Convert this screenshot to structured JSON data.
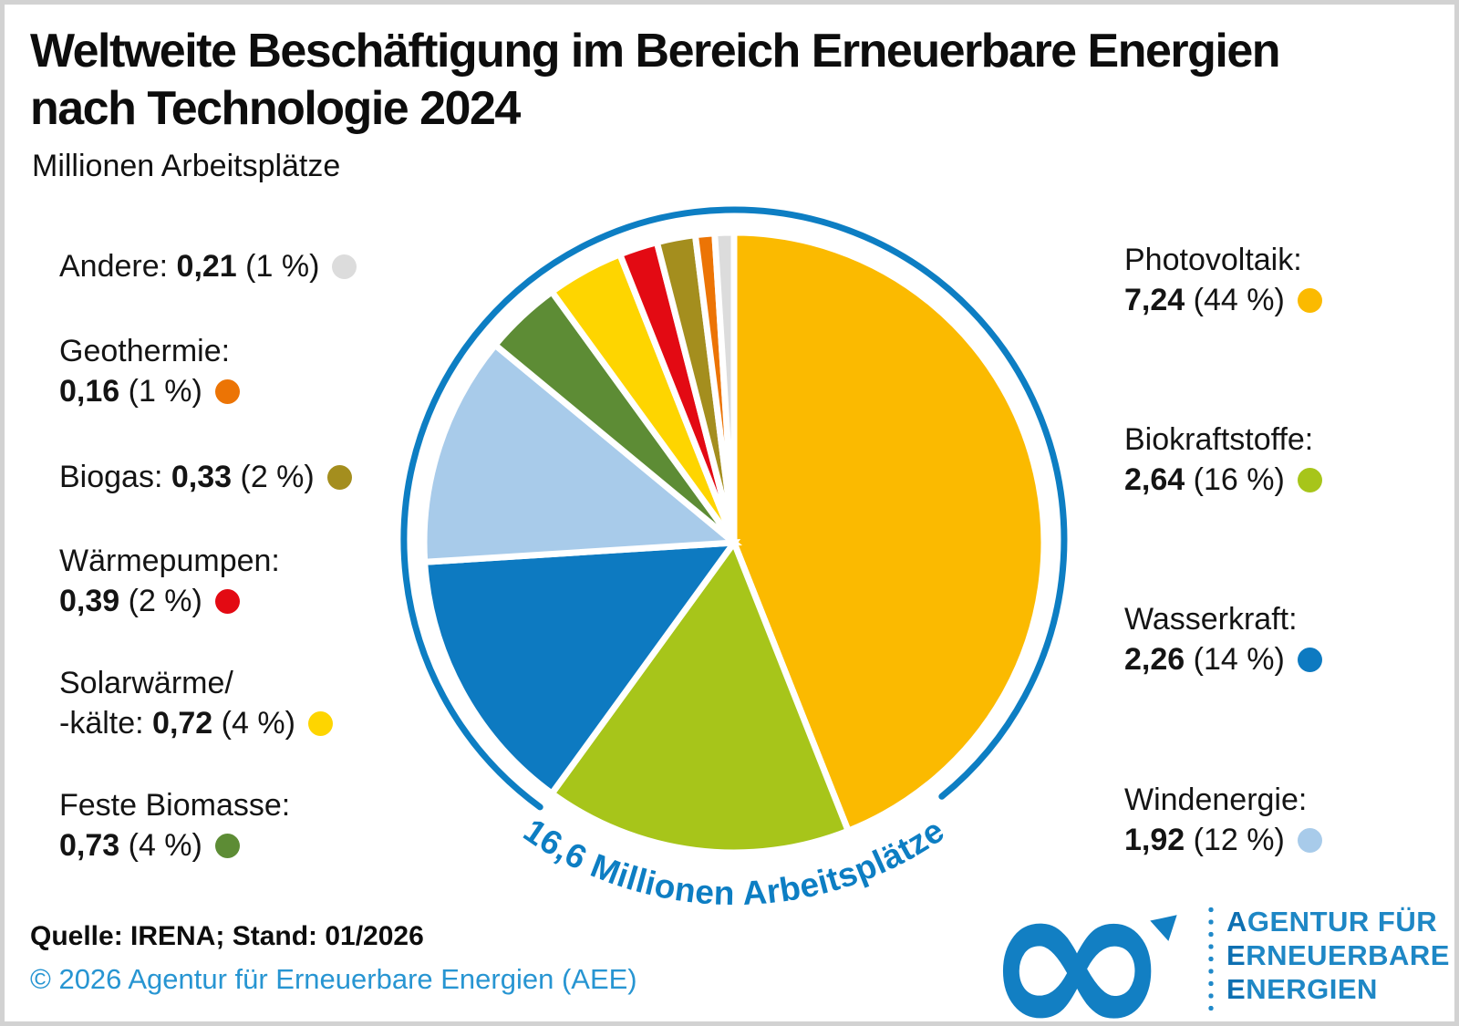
{
  "page": {
    "title_line1": "Weltweite Beschäftigung im Bereich Erneuerbare Energien",
    "title_line2": "nach Technologie 2024",
    "subtitle": "Millionen Arbeitsplätze",
    "source": "Quelle: IRENA; Stand: 01/2026",
    "copyright": "© 2026 Agentur für Erneuerbare Energien (AEE)"
  },
  "chart_data": {
    "type": "pie",
    "title": "Weltweite Beschäftigung im Bereich Erneuerbare Energien nach Technologie 2024",
    "unit": "Millionen Arbeitsplätze",
    "total_label": "16,6 Millionen Arbeitsplätze",
    "total_millions": "16,6",
    "start_angle_deg": 0,
    "direction": "clockwise",
    "slices": [
      {
        "label": "Photovoltaik",
        "value_millions": "7,24",
        "pct": 44,
        "color": "#fbba00"
      },
      {
        "label": "Biokraftstoffe",
        "value_millions": "2,64",
        "pct": 16,
        "color": "#a7c51a"
      },
      {
        "label": "Wasserkraft",
        "value_millions": "2,26",
        "pct": 14,
        "color": "#0d7ac1"
      },
      {
        "label": "Windenergie",
        "value_millions": "1,92",
        "pct": 12,
        "color": "#a8cbea"
      },
      {
        "label": "Feste Biomasse",
        "value_millions": "0,73",
        "pct": 4,
        "color": "#5d8c35"
      },
      {
        "label": "Solarwärme/-kälte",
        "value_millions": "0,72",
        "pct": 4,
        "color": "#fed500"
      },
      {
        "label": "Wärmepumpen",
        "value_millions": "0,39",
        "pct": 2,
        "color": "#e30a13"
      },
      {
        "label": "Biogas",
        "value_millions": "0,33",
        "pct": 2,
        "color": "#a48e1e"
      },
      {
        "label": "Geothermie",
        "value_millions": "0,16",
        "pct": 1,
        "color": "#ec7405"
      },
      {
        "label": "Andere",
        "value_millions": "0,21",
        "pct": 1,
        "color": "#dcdcdc"
      }
    ]
  },
  "legend_left": [
    {
      "prefix": "Andere: ",
      "value": "0,21",
      "suffix": " (1 %)",
      "color": "#dcdcdc"
    },
    {
      "line1": "Geothermie:",
      "value": "0,16",
      "suffix": " (1 %)",
      "color": "#ec7405"
    },
    {
      "prefix": "Biogas: ",
      "value": "0,33",
      "suffix": " (2 %)",
      "color": "#a48e1e"
    },
    {
      "line1": "Wärmepumpen:",
      "value": "0,39",
      "suffix": " (2 %)",
      "color": "#e30a13"
    },
    {
      "line1": "Solarwärme/",
      "line2_prefix": "-kälte: ",
      "value": "0,72",
      "suffix": " (4 %)",
      "color": "#fed500"
    },
    {
      "line1": "Feste Biomasse:",
      "value": "0,73",
      "suffix": " (4 %)",
      "color": "#5d8c35"
    }
  ],
  "legend_right": [
    {
      "line1": "Photovoltaik:",
      "value": "7,24",
      "suffix": " (44 %)",
      "color": "#fbba00"
    },
    {
      "line1": "Biokraftstoffe:",
      "value": "2,64",
      "suffix": " (16 %)",
      "color": "#a7c51a"
    },
    {
      "line1": "Wasserkraft:",
      "value": "2,26",
      "suffix": " (14 %)",
      "color": "#0d7ac1"
    },
    {
      "line1": "Windenergie:",
      "value": "1,92",
      "suffix": " (12 %)",
      "color": "#a8cbea"
    }
  ],
  "logo": {
    "infinity_symbol": "∞",
    "lines": [
      {
        "initial": "A",
        "rest": "GENTUR FÜR"
      },
      {
        "initial": "E",
        "rest": "RNEUERBARE"
      },
      {
        "initial": "E",
        "rest": "NERGIEN"
      }
    ],
    "color": "#127fc3"
  }
}
